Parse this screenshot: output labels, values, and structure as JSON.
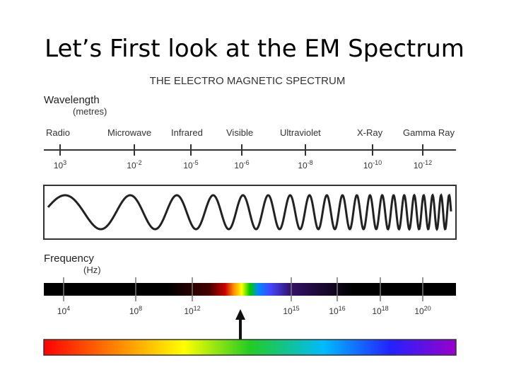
{
  "slide": {
    "title": "Let’s First look at the EM Spectrum"
  },
  "diagram": {
    "heading": "THE ELECTRO MAGNETIC SPECTRUM",
    "wavelength": {
      "label": "Wavelength",
      "unit": "(metres)",
      "bands": [
        "Radio",
        "Microwave",
        "Infrared",
        "Visible",
        "Ultraviolet",
        "X-Ray",
        "Gamma Ray"
      ],
      "ticks": [
        {
          "base": "10",
          "exponent": "3"
        },
        {
          "base": "10",
          "exponent": "-2"
        },
        {
          "base": "10",
          "exponent": "-5"
        },
        {
          "base": "10",
          "exponent": "-6"
        },
        {
          "base": "10",
          "exponent": "-8"
        },
        {
          "base": "10",
          "exponent": "-10"
        },
        {
          "base": "10",
          "exponent": "-12"
        }
      ]
    },
    "frequency": {
      "label": "Frequency",
      "unit": "(Hz)",
      "ticks": [
        {
          "base": "10",
          "exponent": "4"
        },
        {
          "base": "10",
          "exponent": "8"
        },
        {
          "base": "10",
          "exponent": "12"
        },
        {
          "base": "10",
          "exponent": "15"
        },
        {
          "base": "10",
          "exponent": "16"
        },
        {
          "base": "10",
          "exponent": "18"
        },
        {
          "base": "10",
          "exponent": "20"
        }
      ]
    }
  }
}
